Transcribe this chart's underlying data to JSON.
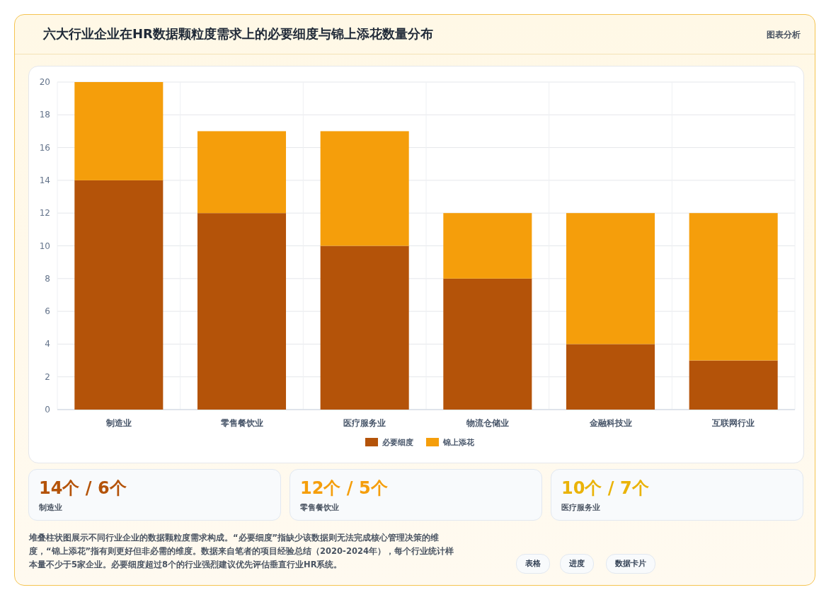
{
  "chart_data": {
    "type": "bar",
    "title": "六大行业企业在HR数据颗粒度需求上的必要细度与锦上添花数量分布",
    "categories": [
      "制造业",
      "零售餐饮业",
      "医疗服务业",
      "物流仓储业",
      "金融科技业",
      "互联网行业"
    ],
    "series": [
      {
        "name": "必要细度",
        "color": "#b45309",
        "values": [
          14,
          12,
          10,
          8,
          4,
          3
        ]
      },
      {
        "name": "锦上添花",
        "color": "#f59e0b",
        "values": [
          6,
          5,
          7,
          4,
          8,
          9
        ]
      }
    ],
    "stacked": true,
    "ylim": [
      0,
      20
    ],
    "yticks": [
      0,
      2,
      4,
      6,
      8,
      10,
      12,
      14,
      16,
      18,
      20
    ],
    "grid": true,
    "legend": "bottom",
    "annotations": [
      "图表分析",
      "14个 / 6个",
      "制造业",
      "12个 / 5个",
      "零售餐饮业",
      "10个 / 7个",
      "医疗服务业",
      "堆叠柱状图展示不同行业企业的数据颗粒度需求构成。“必要细度”指缺少该数据则无法完成核心管理决策的维度，“锦上添花”指有则更好但非必需的维度。数据来自笔者的项目经验总结（2020-2024年），每个行业统计样本量不少于5家企业。必要细度超过8个的行业强烈建议优先评估垂直行业HR系统。",
      "表格",
      "进度",
      "数据卡片"
    ]
  }
}
